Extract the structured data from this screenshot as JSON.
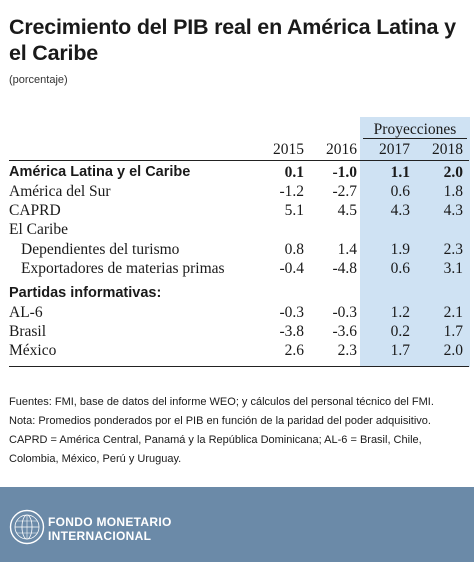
{
  "title": "Crecimiento del PIB real en América Latina y el Caribe",
  "subtitle": "(porcentaje)",
  "table": {
    "projections_label": "Proyecciones",
    "years": [
      "2015",
      "2016",
      "2017",
      "2018"
    ],
    "rows": [
      {
        "label": "América Latina  y el Caribe",
        "values": [
          "0.1",
          "-1.0",
          "1.1",
          "2.0"
        ]
      },
      {
        "label": "América del Sur",
        "values": [
          "-1.2",
          "-2.7",
          "0.6",
          "1.8"
        ]
      },
      {
        "label": "CAPRD",
        "values": [
          "5.1",
          "4.5",
          "4.3",
          "4.3"
        ]
      },
      {
        "label": "El Caribe",
        "values": [
          "",
          "",
          "",
          ""
        ]
      },
      {
        "label": "Dependientes del turismo",
        "values": [
          "0.8",
          "1.4",
          "1.9",
          "2.3"
        ]
      },
      {
        "label": "Exportadores de materias primas",
        "values": [
          "-0.4",
          "-4.8",
          "0.6",
          "3.1"
        ]
      },
      {
        "label": "Partidas informativas:",
        "values": [
          "",
          "",
          "",
          ""
        ]
      },
      {
        "label": "AL-6",
        "values": [
          "-0.3",
          "-0.3",
          "1.2",
          "2.1"
        ]
      },
      {
        "label": "Brasil",
        "values": [
          "-3.8",
          "-3.6",
          "0.2",
          "1.7"
        ]
      },
      {
        "label": "México",
        "values": [
          "2.6",
          "2.3",
          "1.7",
          "2.0"
        ]
      }
    ]
  },
  "footnotes": {
    "source": "Fuentes: FMI, base de datos del informe WEO; y cálculos del personal técnico del FMI.",
    "note": "Nota: Promedios ponderados por el PIB en función de la paridad del poder adquisitivo.",
    "definitions_line1": "CAPRD = América Central, Panamá y la República Dominicana; AL-6 = Brasil, Chile,",
    "definitions_line2": "Colombia, México, Perú y Uruguay."
  },
  "footer": {
    "org_line1": "FONDO MONETARIO",
    "org_line2": "INTERNACIONAL",
    "background_color": "#6b8aa8",
    "logo_icon": "imf-seal-icon"
  },
  "colors": {
    "projection_band": "#cfe2f3"
  }
}
